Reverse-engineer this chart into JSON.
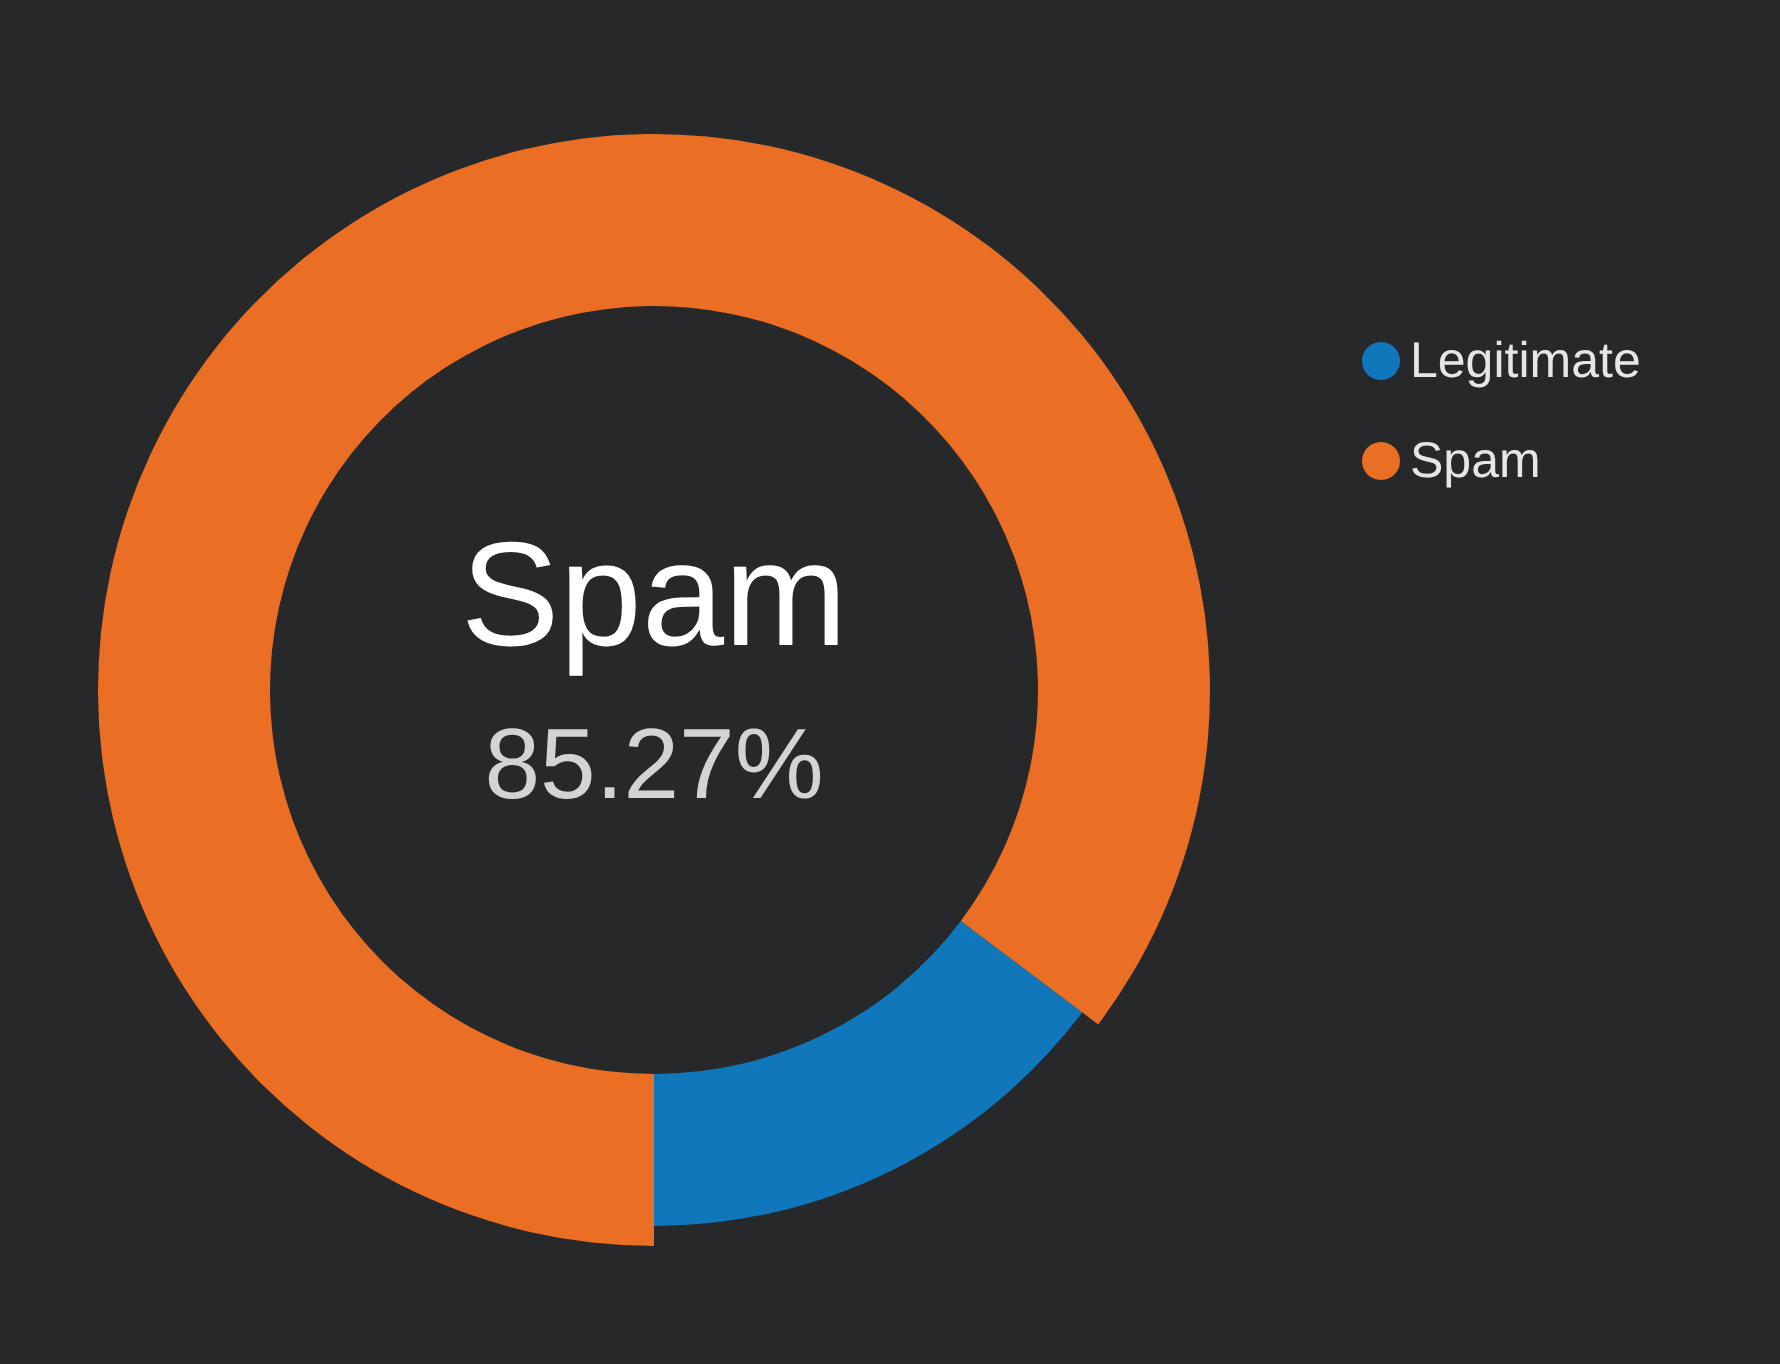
{
  "chart_data": {
    "type": "donut",
    "categories": [
      "Legitimate",
      "Spam"
    ],
    "values": [
      14.73,
      85.27
    ],
    "colors": [
      "#1177bb",
      "#ea6e23"
    ],
    "value_labels": [
      null,
      "85.27%"
    ],
    "legend": "top right"
  }
}
